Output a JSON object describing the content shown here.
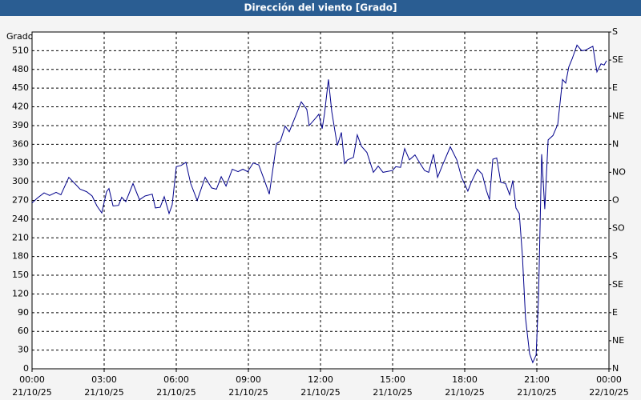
{
  "chart_data": {
    "type": "line",
    "title": "Dirección del viento [Grado]",
    "ylabel": "Grado",
    "x": [
      0,
      0.23,
      0.5,
      0.73,
      1.0,
      1.2,
      1.53,
      1.73,
      2.0,
      2.27,
      2.5,
      2.7,
      2.9,
      3.1,
      3.2,
      3.37,
      3.6,
      3.73,
      3.9,
      4.2,
      4.47,
      4.7,
      5.0,
      5.13,
      5.33,
      5.5,
      5.7,
      5.83,
      6.0,
      6.2,
      6.4,
      6.6,
      6.87,
      7.2,
      7.47,
      7.67,
      7.87,
      8.07,
      8.33,
      8.57,
      8.77,
      8.97,
      9.2,
      9.43,
      9.67,
      9.87,
      10.17,
      10.33,
      10.53,
      10.7,
      10.93,
      11.2,
      11.43,
      11.53,
      11.8,
      11.93,
      12.07,
      12.17,
      12.33,
      12.47,
      12.7,
      12.87,
      13.0,
      13.13,
      13.37,
      13.53,
      13.7,
      13.93,
      14.2,
      14.4,
      14.6,
      15.0,
      15.13,
      15.33,
      15.5,
      15.7,
      15.93,
      16.13,
      16.33,
      16.5,
      16.7,
      16.87,
      17.07,
      17.4,
      17.67,
      17.87,
      18.13,
      18.27,
      18.53,
      18.73,
      18.9,
      19.03,
      19.17,
      19.33,
      19.5,
      19.7,
      19.87,
      20.0,
      20.13,
      20.27,
      20.4,
      20.53,
      20.7,
      20.83,
      20.97,
      21.07,
      21.2,
      21.33,
      21.47,
      21.67,
      21.87,
      22.07,
      22.2,
      22.33,
      22.47,
      22.67,
      22.87,
      23.03,
      23.17,
      23.33,
      23.5,
      23.67,
      23.8,
      23.9
    ],
    "series": [
      {
        "name": "Dirección del viento",
        "color": "#00008b",
        "values": [
          266,
          274,
          282,
          278,
          283,
          279,
          307,
          299,
          288,
          284,
          277,
          261,
          250,
          284,
          289,
          261,
          262,
          275,
          268,
          297,
          271,
          277,
          280,
          258,
          259,
          276,
          249,
          263,
          324,
          326,
          331,
          297,
          270,
          307,
          290,
          288,
          308,
          293,
          320,
          316,
          320,
          316,
          330,
          327,
          302,
          280,
          361,
          365,
          389,
          380,
          402,
          428,
          416,
          390,
          402,
          408,
          385,
          410,
          464,
          412,
          358,
          379,
          329,
          335,
          339,
          375,
          357,
          347,
          315,
          325,
          315,
          318,
          324,
          323,
          353,
          335,
          343,
          330,
          318,
          315,
          344,
          307,
          326,
          356,
          335,
          307,
          285,
          299,
          320,
          312,
          286,
          271,
          336,
          338,
          299,
          297,
          279,
          302,
          258,
          249,
          181,
          81,
          24,
          10,
          22,
          114,
          344,
          256,
          367,
          374,
          392,
          464,
          458,
          484,
          497,
          519,
          510,
          511,
          514,
          517,
          476,
          489,
          487,
          494
        ]
      }
    ],
    "xlim": [
      0,
      24
    ],
    "xticks": [
      {
        "value": 0,
        "label": "00:00",
        "date": "21/10/25"
      },
      {
        "value": 3,
        "label": "03:00",
        "date": "21/10/25"
      },
      {
        "value": 6,
        "label": "06:00",
        "date": "21/10/25"
      },
      {
        "value": 9,
        "label": "09:00",
        "date": "21/10/25"
      },
      {
        "value": 12,
        "label": "12:00",
        "date": "21/10/25"
      },
      {
        "value": 15,
        "label": "15:00",
        "date": "21/10/25"
      },
      {
        "value": 18,
        "label": "18:00",
        "date": "21/10/25"
      },
      {
        "value": 21,
        "label": "21:00",
        "date": "21/10/25"
      },
      {
        "value": 24,
        "label": "00:00",
        "date": "22/10/25"
      }
    ],
    "ylim": [
      0,
      540
    ],
    "yticks": [
      0,
      30,
      60,
      90,
      120,
      150,
      180,
      210,
      240,
      270,
      300,
      330,
      360,
      390,
      420,
      450,
      480,
      510
    ],
    "y2lim": [
      0,
      540
    ],
    "y2ticks": [
      {
        "value": 0,
        "label": "N"
      },
      {
        "value": 45,
        "label": "NE"
      },
      {
        "value": 90,
        "label": "E"
      },
      {
        "value": 135,
        "label": "SE"
      },
      {
        "value": 180,
        "label": "S"
      },
      {
        "value": 225,
        "label": "SO"
      },
      {
        "value": 270,
        "label": "O"
      },
      {
        "value": 315,
        "label": "NO"
      },
      {
        "value": 360,
        "label": "N"
      },
      {
        "value": 405,
        "label": "NE"
      },
      {
        "value": 450,
        "label": "E"
      },
      {
        "value": 495,
        "label": "SE"
      },
      {
        "value": 540,
        "label": "S"
      }
    ],
    "grid": true
  }
}
